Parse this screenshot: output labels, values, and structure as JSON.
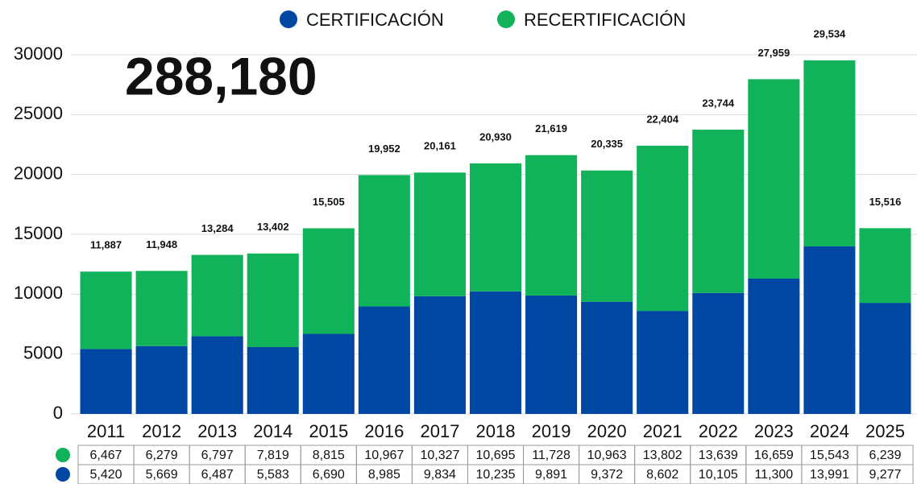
{
  "chart_data": {
    "type": "stacked_bar",
    "annotation": "288,180",
    "categories": [
      "2011",
      "2012",
      "2013",
      "2014",
      "2015",
      "2016",
      "2017",
      "2018",
      "2019",
      "2020",
      "2021",
      "2022",
      "2023",
      "2024",
      "2025"
    ],
    "series": [
      {
        "name": "CERTIFICACIÓN",
        "color": "#0047a3",
        "values": [
          5420,
          5669,
          6487,
          5583,
          6690,
          8985,
          9834,
          10235,
          9891,
          9372,
          8602,
          10105,
          11300,
          13991,
          9277
        ],
        "value_labels": [
          "5,420",
          "5,669",
          "6,487",
          "5,583",
          "6,690",
          "8,985",
          "9,834",
          "10,235",
          "9,891",
          "9,372",
          "8,602",
          "10,105",
          "11,300",
          "13,991",
          "9,277"
        ]
      },
      {
        "name": "RECERTIFICACIÓN",
        "color": "#10b35a",
        "values": [
          6467,
          6279,
          6797,
          7819,
          8815,
          10967,
          10327,
          10695,
          11728,
          10963,
          13802,
          13639,
          16659,
          15543,
          6239
        ],
        "value_labels": [
          "6,467",
          "6,279",
          "6,797",
          "7,819",
          "8,815",
          "10,967",
          "10,327",
          "10,695",
          "11,728",
          "10,963",
          "13,802",
          "13,639",
          "16,659",
          "15,543",
          "6,239"
        ]
      }
    ],
    "total_labels": [
      "11,887",
      "11,948",
      "13,284",
      "13,402",
      "15,505",
      "19,952",
      "20,161",
      "20,930",
      "21,619",
      "20,335",
      "22,404",
      "23,744",
      "27,959",
      "29,534",
      "15,516"
    ],
    "ylim": [
      0,
      30000
    ],
    "yticks": [
      0,
      5000,
      10000,
      15000,
      20000,
      25000,
      30000
    ],
    "grid": true
  }
}
